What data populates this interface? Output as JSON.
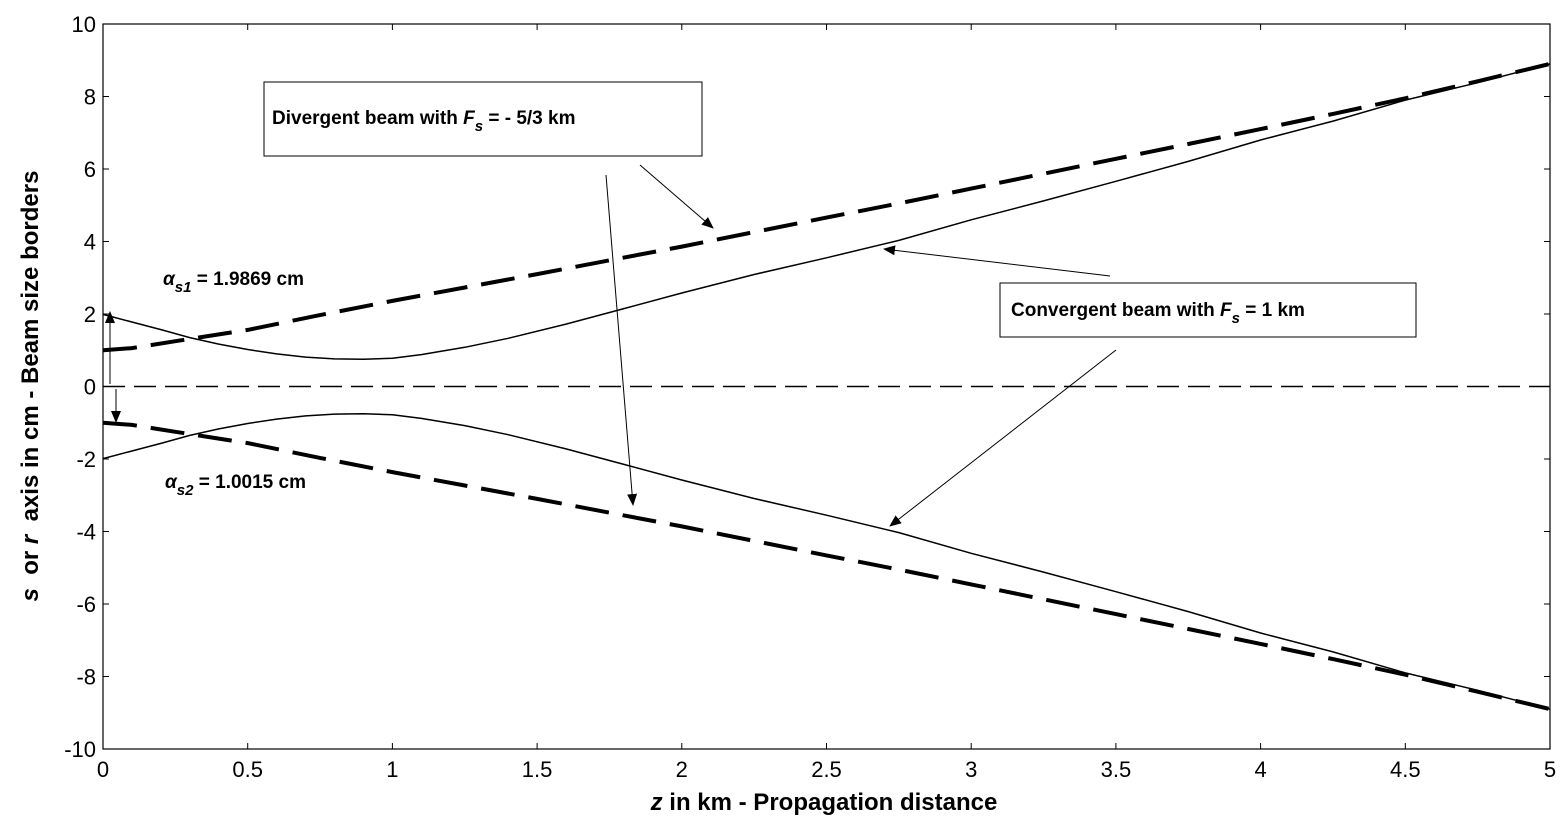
{
  "chart_data": {
    "type": "line",
    "xlabel": {
      "var": "z",
      "text": " in km - Propagation distance"
    },
    "ylabel": {
      "var1": "s",
      "mid": "  or ",
      "var2": "r",
      "text": "  axis in cm - Beam size borders"
    },
    "xlim": [
      0,
      5
    ],
    "ylim": [
      -10,
      10
    ],
    "xticks": [
      "0",
      "0.5",
      "1",
      "1.5",
      "2",
      "2.5",
      "3",
      "3.5",
      "4",
      "4.5",
      "5"
    ],
    "yticks": [
      "-10",
      "-8",
      "-6",
      "-4",
      "-2",
      "0",
      "2",
      "4",
      "6",
      "8",
      "10"
    ],
    "grid": false,
    "legend": "none",
    "series": [
      {
        "key": "divergent_upper",
        "style": "thick-dashed",
        "x": [
          0,
          0.1,
          0.25,
          0.5,
          0.75,
          1,
          1.25,
          1.5,
          1.75,
          2,
          2.25,
          2.5,
          2.75,
          3,
          3.25,
          3.5,
          3.75,
          4,
          4.25,
          4.5,
          4.75,
          5
        ],
        "y": [
          1.0,
          1.06,
          1.25,
          1.56,
          1.97,
          2.36,
          2.73,
          3.1,
          3.48,
          3.86,
          4.26,
          4.66,
          5.05,
          5.46,
          5.87,
          6.28,
          6.69,
          7.1,
          7.52,
          7.95,
          8.42,
          8.9
        ]
      },
      {
        "key": "divergent_lower",
        "style": "thick-dashed",
        "x": [
          0,
          0.1,
          0.25,
          0.5,
          0.75,
          1,
          1.25,
          1.5,
          1.75,
          2,
          2.25,
          2.5,
          2.75,
          3,
          3.25,
          3.5,
          3.75,
          4,
          4.25,
          4.5,
          4.75,
          5
        ],
        "y": [
          -1.0,
          -1.06,
          -1.25,
          -1.56,
          -1.97,
          -2.36,
          -2.73,
          -3.1,
          -3.48,
          -3.86,
          -4.26,
          -4.66,
          -5.05,
          -5.46,
          -5.87,
          -6.28,
          -6.69,
          -7.1,
          -7.52,
          -7.95,
          -8.42,
          -8.9
        ]
      },
      {
        "key": "convergent_upper",
        "style": "thin-solid",
        "x": [
          0,
          0.1,
          0.2,
          0.3,
          0.4,
          0.5,
          0.6,
          0.7,
          0.8,
          0.9,
          1,
          1.1,
          1.25,
          1.4,
          1.6,
          1.8,
          2,
          2.25,
          2.5,
          2.75,
          3,
          3.25,
          3.5,
          3.75,
          4,
          4.25,
          4.5,
          4.75,
          5
        ],
        "y": [
          1.99,
          1.78,
          1.57,
          1.35,
          1.17,
          1.02,
          0.9,
          0.81,
          0.76,
          0.75,
          0.78,
          0.88,
          1.08,
          1.33,
          1.72,
          2.15,
          2.58,
          3.09,
          3.55,
          4.03,
          4.6,
          5.12,
          5.66,
          6.21,
          6.8,
          7.32,
          7.9,
          8.38,
          8.9
        ]
      },
      {
        "key": "convergent_lower",
        "style": "thin-solid",
        "x": [
          0,
          0.1,
          0.2,
          0.3,
          0.4,
          0.5,
          0.6,
          0.7,
          0.8,
          0.9,
          1,
          1.1,
          1.25,
          1.4,
          1.6,
          1.8,
          2,
          2.25,
          2.5,
          2.75,
          3,
          3.25,
          3.5,
          3.75,
          4,
          4.25,
          4.5,
          4.75,
          5
        ],
        "y": [
          -1.99,
          -1.78,
          -1.57,
          -1.35,
          -1.17,
          -1.02,
          -0.9,
          -0.81,
          -0.76,
          -0.75,
          -0.78,
          -0.88,
          -1.08,
          -1.33,
          -1.72,
          -2.15,
          -2.58,
          -3.09,
          -3.55,
          -4.03,
          -4.6,
          -5.12,
          -5.66,
          -6.21,
          -6.8,
          -7.32,
          -7.9,
          -8.38,
          -8.9
        ]
      },
      {
        "key": "axis_zero",
        "style": "thin-dashed",
        "x": [
          0,
          5
        ],
        "y": [
          0,
          0
        ]
      }
    ],
    "annotations": {
      "divergent": {
        "prefix": "Divergent beam with ",
        "var": "F",
        "sub": "s",
        "suffix": " = - 5/3 km"
      },
      "convergent": {
        "prefix": "Convergent beam with ",
        "var": "F",
        "sub": "s",
        "suffix": " = 1 km"
      },
      "alpha1": {
        "var": "α",
        "sub": "s1",
        "suffix": " = 1.9869 cm"
      },
      "alpha2": {
        "var": "α",
        "sub": "s2",
        "suffix": " = 1.0015 cm"
      }
    }
  }
}
